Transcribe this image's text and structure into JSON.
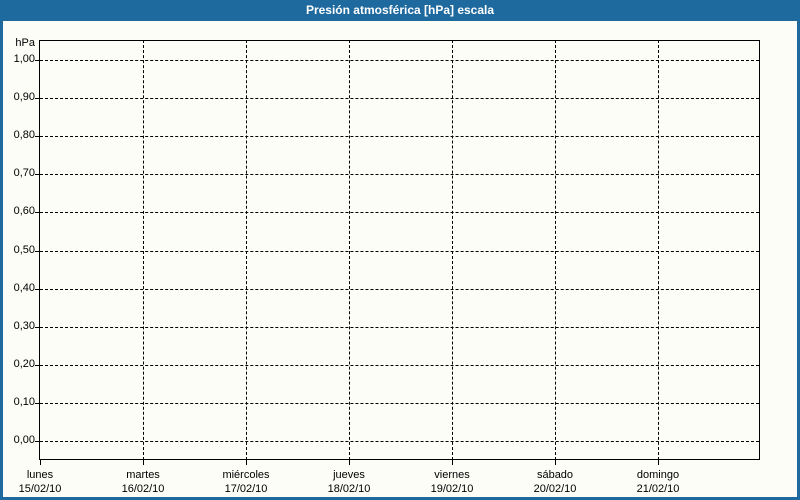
{
  "colors": {
    "frame": "#1e699e",
    "titlebar_bg": "#1e699e",
    "titlebar_text": "#ffffff",
    "chart_bg": "#fcfdf7",
    "grid": "#000000",
    "axis": "#000000",
    "label_text": "#000000"
  },
  "chart_data": {
    "type": "line",
    "title": "Presión atmosférica [hPa] escala",
    "xlabel": "",
    "ylabel": "hPa",
    "ylim": [
      0.0,
      1.0
    ],
    "y_tick_step": 0.1,
    "y_tick_labels": [
      "0,00",
      "0,10",
      "0,20",
      "0,30",
      "0,40",
      "0,50",
      "0,60",
      "0,70",
      "0,80",
      "0,90",
      "1,00"
    ],
    "x_categories": [
      {
        "day": "lunes",
        "date": "15/02/10"
      },
      {
        "day": "martes",
        "date": "16/02/10"
      },
      {
        "day": "miércoles",
        "date": "17/02/10"
      },
      {
        "day": "jueves",
        "date": "18/02/10"
      },
      {
        "day": "viernes",
        "date": "19/02/10"
      },
      {
        "day": "sábado",
        "date": "20/02/10"
      },
      {
        "day": "domingo",
        "date": "21/02/10"
      }
    ],
    "grid": "dashed, horizontal every 0,10 and vertical every day",
    "legend_position": "none",
    "series": []
  }
}
